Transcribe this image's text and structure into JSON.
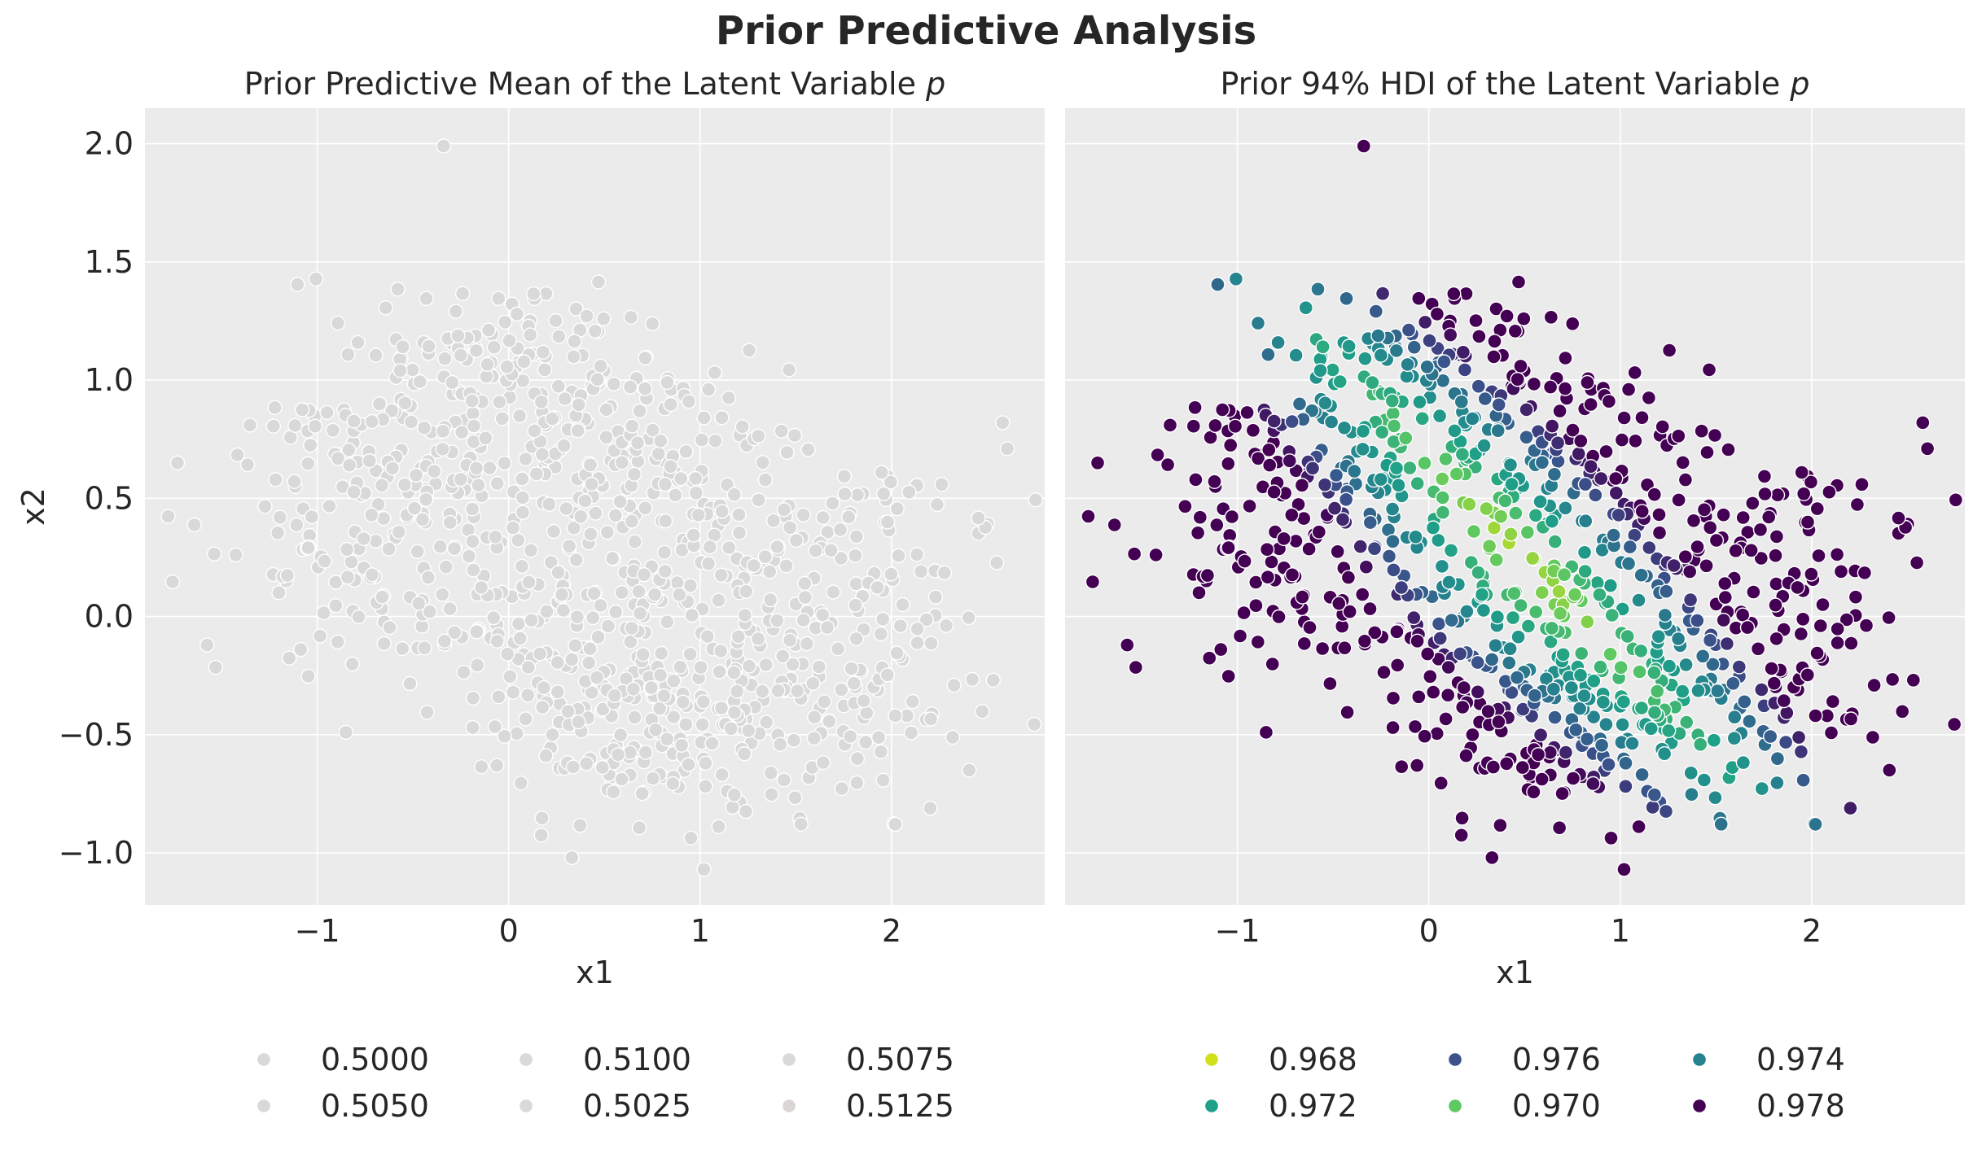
{
  "figure": {
    "suptitle": "Prior Predictive Analysis"
  },
  "chart_data": [
    {
      "type": "scatter",
      "title": "Prior Predictive Mean of the Latent Variable p",
      "title_prefix": "Prior Predictive Mean of the Latent Variable ",
      "title_var": "p",
      "xlabel": "x1",
      "ylabel": "x2",
      "xlim": [
        -1.9,
        2.8
      ],
      "ylim": [
        -1.22,
        2.15
      ],
      "xticks": [
        -1,
        0,
        1,
        2
      ],
      "xtick_labels": [
        "−1",
        "0",
        "1",
        "2"
      ],
      "yticks": [
        -1.0,
        -0.5,
        0.0,
        0.5,
        1.0,
        1.5,
        2.0
      ],
      "ytick_labels": [
        "−1.0",
        "−0.5",
        "0.0",
        "0.5",
        "1.0",
        "1.5",
        "2.0"
      ],
      "grid": true,
      "legend_position": "bottom",
      "color_mode": "mean",
      "legend": [
        {
          "label": "0.5000",
          "color": "#d9d9d9"
        },
        {
          "label": "0.5050",
          "color": "#d9d9d9"
        },
        {
          "label": "0.5100",
          "color": "#d9d9d9"
        },
        {
          "label": "0.5025",
          "color": "#d9d9d9"
        },
        {
          "label": "0.5075",
          "color": "#d9d9d9"
        },
        {
          "label": "0.5125",
          "color": "#dbd6d4"
        }
      ]
    },
    {
      "type": "scatter",
      "title": "Prior 94% HDI of the Latent Variable p",
      "title_prefix": "Prior 94% HDI of the Latent Variable ",
      "title_var": "p",
      "xlabel": "x1",
      "ylabel": "",
      "xlim": [
        -1.9,
        2.8
      ],
      "ylim": [
        -1.22,
        2.15
      ],
      "xticks": [
        -1,
        0,
        1,
        2
      ],
      "xtick_labels": [
        "−1",
        "0",
        "1",
        "2"
      ],
      "yticks": [
        -1.0,
        -0.5,
        0.0,
        0.5,
        1.0,
        1.5,
        2.0
      ],
      "grid": true,
      "legend_position": "bottom",
      "color_mode": "hdi",
      "legend": [
        {
          "label": "0.968",
          "color": "#d0e11c"
        },
        {
          "label": "0.972",
          "color": "#1fa088"
        },
        {
          "label": "0.976",
          "color": "#3b528b"
        },
        {
          "label": "0.970",
          "color": "#5ec962"
        },
        {
          "label": "0.974",
          "color": "#26828e"
        },
        {
          "label": "0.978",
          "color": "#440154"
        }
      ]
    }
  ],
  "colors": {
    "panel_bg": "#ebebeb",
    "grid": "#ffffff",
    "mean_point": "#d9d9d9",
    "point_edge": "#ffffff"
  }
}
